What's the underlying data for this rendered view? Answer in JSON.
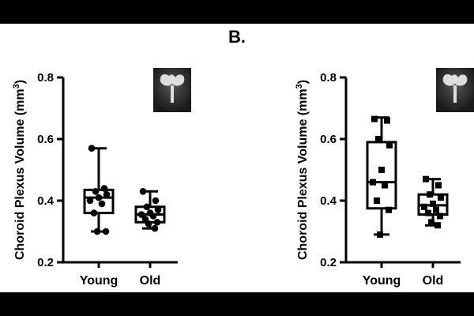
{
  "panel_label": "B.",
  "chart_data": [
    {
      "type": "box",
      "title": "",
      "ylabel": "Choroid Plexus Volume (mm",
      "ylabel_sup": "3",
      "ylabel_close": ")",
      "ylim": [
        0.2,
        0.8
      ],
      "yticks": [
        "0.2",
        "0.4",
        "0.6",
        "0.8"
      ],
      "ytick_values": [
        0.2,
        0.4,
        0.6,
        0.8
      ],
      "categories": [
        "Young",
        "Old"
      ],
      "marker": "circle",
      "boxes": [
        {
          "name": "Young",
          "min": 0.3,
          "q1": 0.36,
          "median": 0.41,
          "q3": 0.435,
          "max": 0.57,
          "points": [
            0.57,
            0.44,
            0.43,
            0.42,
            0.41,
            0.4,
            0.39,
            0.36,
            0.3,
            0.3
          ]
        },
        {
          "name": "Old",
          "min": 0.31,
          "q1": 0.33,
          "median": 0.355,
          "q3": 0.38,
          "max": 0.43,
          "points": [
            0.43,
            0.4,
            0.38,
            0.37,
            0.36,
            0.355,
            0.35,
            0.34,
            0.33,
            0.325,
            0.31
          ]
        }
      ],
      "inset_icon": "brain-mri-thumbnail-icon"
    },
    {
      "type": "box",
      "title": "",
      "ylabel": "Choroid Plexus Volume (mm",
      "ylabel_sup": "3",
      "ylabel_close": ")",
      "ylim": [
        0.2,
        0.8
      ],
      "yticks": [
        "0.2",
        "0.4",
        "0.6",
        "0.8"
      ],
      "ytick_values": [
        0.2,
        0.4,
        0.6,
        0.8
      ],
      "categories": [
        "Young",
        "Old"
      ],
      "marker": "square",
      "boxes": [
        {
          "name": "Young",
          "min": 0.29,
          "q1": 0.375,
          "median": 0.46,
          "q3": 0.59,
          "max": 0.67,
          "points": [
            0.665,
            0.66,
            0.6,
            0.58,
            0.5,
            0.46,
            0.45,
            0.4,
            0.37,
            0.29
          ]
        },
        {
          "name": "Old",
          "min": 0.32,
          "q1": 0.355,
          "median": 0.385,
          "q3": 0.42,
          "max": 0.47,
          "points": [
            0.47,
            0.45,
            0.42,
            0.41,
            0.39,
            0.38,
            0.37,
            0.36,
            0.35,
            0.33,
            0.32
          ]
        }
      ],
      "inset_icon": "brain-mri-thumbnail-icon"
    }
  ]
}
